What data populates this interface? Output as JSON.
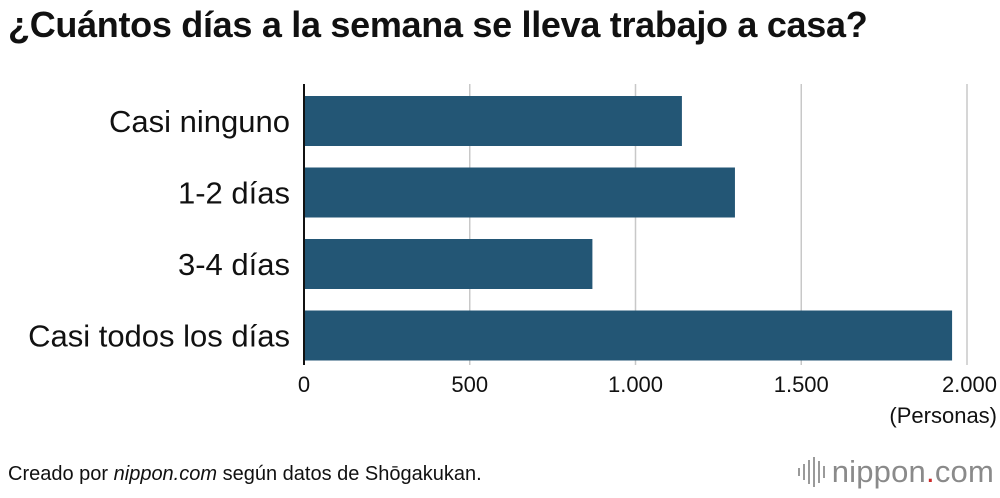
{
  "title": "¿Cuántos días a la semana se lleva trabajo a casa?",
  "chart_data": {
    "type": "bar",
    "orientation": "horizontal",
    "title": "¿Cuántos días a la semana se lleva trabajo a casa?",
    "categories": [
      "Casi ninguno",
      "1-2 días",
      "3-4 días",
      "Casi todos los días"
    ],
    "values": [
      1140,
      1300,
      870,
      1955
    ],
    "xlabel": "(Personas)",
    "xlim": [
      0,
      2000
    ],
    "ticks": [
      0,
      500,
      1000,
      1500,
      2000
    ],
    "tick_labels": [
      "0",
      "500",
      "1.000",
      "1.500",
      "2.000"
    ],
    "grid": true,
    "bar_color": "#235675"
  },
  "footer": {
    "source_prefix": "Creado por ",
    "source_site": "nippon.com",
    "source_suffix": " según datos de Shōgakukan."
  },
  "brand": {
    "name": "nippon",
    "dot": ".",
    "tld": "com",
    "icon": "nippon-logo-icon"
  }
}
